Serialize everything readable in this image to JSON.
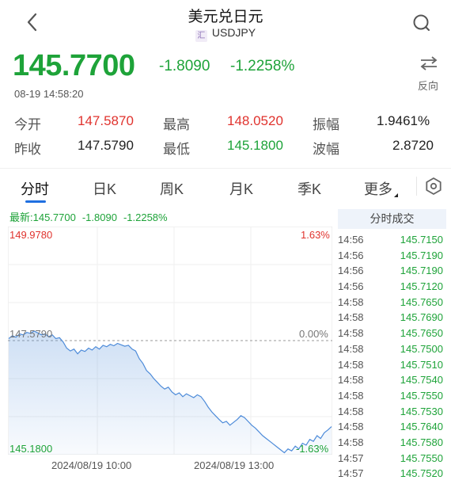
{
  "header": {
    "title": "美元兑日元",
    "badge": "汇",
    "symbol": "USDJPY"
  },
  "quote": {
    "price": "145.7700",
    "change": "-1.8090",
    "change_pct": "-1.2258%",
    "time": "08-19 14:58:20",
    "reverse_label": "反向"
  },
  "stats": {
    "open_label": "今开",
    "open": "147.5870",
    "high_label": "最高",
    "high": "148.0520",
    "amp_label": "振幅",
    "amp": "1.9461%",
    "prev_label": "昨收",
    "prev": "147.5790",
    "low_label": "最低",
    "low": "145.1800",
    "wave_label": "波幅",
    "wave": "2.8720"
  },
  "tabs": [
    "分时",
    "日K",
    "周K",
    "月K",
    "季K",
    "更多"
  ],
  "legend": {
    "latest": "最新:145.7700",
    "change": "-1.8090",
    "change_pct": "-1.2258%"
  },
  "chart_data": {
    "type": "area",
    "y_top_label": "149.9780",
    "y_top_pct": "1.63%",
    "y_mid_label": "147.5790",
    "y_mid_pct": "0.00%",
    "y_bottom_label": "145.1800",
    "y_bottom_pct": "-1.63%",
    "ylim": [
      145.18,
      149.978
    ],
    "x_labels": [
      "2024/08/19 10:00",
      "2024/08/19 13:00"
    ],
    "values": [
      147.62,
      147.68,
      147.65,
      147.72,
      147.7,
      147.75,
      147.73,
      147.78,
      147.74,
      147.7,
      147.72,
      147.66,
      147.7,
      147.62,
      147.64,
      147.55,
      147.42,
      147.36,
      147.4,
      147.3,
      147.38,
      147.35,
      147.42,
      147.38,
      147.45,
      147.4,
      147.48,
      147.45,
      147.5,
      147.47,
      147.52,
      147.49,
      147.46,
      147.48,
      147.4,
      147.36,
      147.2,
      147.1,
      146.95,
      146.88,
      146.78,
      146.7,
      146.62,
      146.56,
      146.6,
      146.5,
      146.44,
      146.48,
      146.4,
      146.46,
      146.42,
      146.38,
      146.44,
      146.4,
      146.3,
      146.18,
      146.08,
      146.0,
      145.92,
      145.85,
      145.88,
      145.8,
      145.86,
      145.92,
      146.0,
      145.96,
      145.88,
      145.8,
      145.74,
      145.66,
      145.58,
      145.52,
      145.46,
      145.4,
      145.34,
      145.28,
      145.22,
      145.3,
      145.26,
      145.36,
      145.3,
      145.42,
      145.38,
      145.5,
      145.46,
      145.58,
      145.52,
      145.64,
      145.7,
      145.77
    ]
  },
  "trades": {
    "header": "分时成交",
    "rows": [
      {
        "t": "14:56",
        "p": "145.7150"
      },
      {
        "t": "14:56",
        "p": "145.7190"
      },
      {
        "t": "14:56",
        "p": "145.7190"
      },
      {
        "t": "14:56",
        "p": "145.7120"
      },
      {
        "t": "14:58",
        "p": "145.7650"
      },
      {
        "t": "14:58",
        "p": "145.7690"
      },
      {
        "t": "14:58",
        "p": "145.7650"
      },
      {
        "t": "14:58",
        "p": "145.7500"
      },
      {
        "t": "14:58",
        "p": "145.7510"
      },
      {
        "t": "14:58",
        "p": "145.7540"
      },
      {
        "t": "14:58",
        "p": "145.7550"
      },
      {
        "t": "14:58",
        "p": "145.7530"
      },
      {
        "t": "14:58",
        "p": "145.7640"
      },
      {
        "t": "14:58",
        "p": "145.7580"
      },
      {
        "t": "14:57",
        "p": "145.7550"
      },
      {
        "t": "14:57",
        "p": "145.7520"
      }
    ]
  },
  "colors": {
    "up": "#e0332e",
    "down": "#1ea339",
    "accent": "#1f6fe0",
    "line": "#4d8bd9"
  },
  "icons": {
    "back": "chevron-left-icon",
    "search": "search-icon",
    "swap": "swap-icon",
    "settings": "settings-icon"
  }
}
